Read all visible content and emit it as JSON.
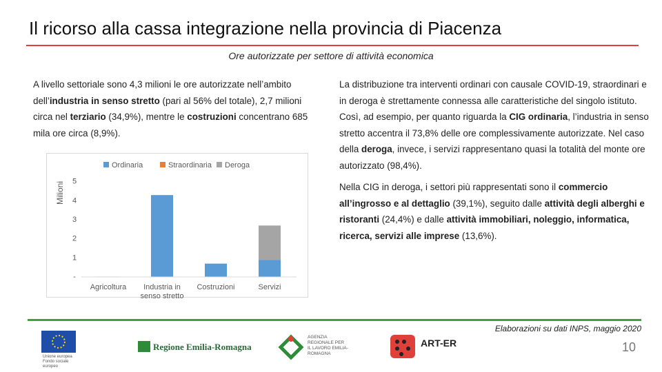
{
  "header": {
    "title": "Il ricorso alla cassa integrazione nella provincia di Piacenza",
    "subtitle": "Ore autorizzate per settore di attività economica"
  },
  "left_text": [
    {
      "text": "A livello settoriale sono 4,3 milioni le ore autorizzate nell’ambito dell’",
      "bold": false
    },
    {
      "text": "industria in senso stretto",
      "bold": true
    },
    {
      "text": " (pari al 56% del totale), 2,7 milioni circa nel ",
      "bold": false
    },
    {
      "text": "terziario",
      "bold": true
    },
    {
      "text": " (34,9%), mentre le ",
      "bold": false
    },
    {
      "text": "costruzioni",
      "bold": true
    },
    {
      "text": " concentrano 685 mila ore circa (8,9%).",
      "bold": false
    }
  ],
  "right_text": [
    [
      {
        "text": "La distribuzione tra interventi ordinari con causale COVID-19, straordinari e in deroga è strettamente connessa alle caratteristiche del singolo istituto. Così, ad esempio, per quanto riguarda la ",
        "bold": false
      },
      {
        "text": "CIG ordinaria",
        "bold": true
      },
      {
        "text": ", l’industria in senso stretto accentra il 73,8% delle ore complessivamente autorizzate. Nel caso della ",
        "bold": false
      },
      {
        "text": "deroga",
        "bold": true
      },
      {
        "text": ", invece, i servizi rappresentano quasi la totalità del monte ore autorizzato (98,4%).",
        "bold": false
      }
    ],
    [
      {
        "text": "Nella CIG in deroga, i settori più rappresentati sono il ",
        "bold": false
      },
      {
        "text": "commercio all’ingrosso e al dettaglio",
        "bold": true
      },
      {
        "text": " (39,1%), seguito dalle ",
        "bold": false
      },
      {
        "text": "attività degli alberghi e ristoranti",
        "bold": true
      },
      {
        "text": " (24,4%) e dalle ",
        "bold": false
      },
      {
        "text": "attività immobiliari, noleggio, informatica, ricerca, servizi alle imprese",
        "bold": true
      },
      {
        "text": " (13,6%).",
        "bold": false
      }
    ]
  ],
  "chart_data": {
    "type": "stacked_bar",
    "y_label": "Milioni",
    "categories": [
      "Agricoltura",
      "Industria in senso stretto",
      "Costruzioni",
      "Servizi"
    ],
    "series": [
      {
        "name": "Ordinaria",
        "color": "#5b9bd5",
        "values": [
          0.02,
          4.3,
          0.7,
          0.9
        ]
      },
      {
        "name": "Straordinaria",
        "color": "#ed7d31",
        "values": [
          0,
          0,
          0,
          0
        ]
      },
      {
        "name": "Deroga",
        "color": "#a5a5a5",
        "values": [
          0,
          0,
          0,
          1.8
        ]
      }
    ],
    "ylim": [
      0,
      5.5
    ],
    "yticks": [
      {
        "value": 0,
        "label": "-"
      },
      1,
      2,
      3,
      4,
      5
    ],
    "grid": false,
    "legend": "top"
  },
  "footer": {
    "source": "Elaborazioni su dati INPS, maggio 2020",
    "page": "10",
    "logos": [
      "Unione europea Fondo sociale europeo",
      "Regione Emilia-Romagna",
      "AGENZIA REGIONALE PER IL LAVORO EMILIA-ROMAGNA",
      "ART-ER"
    ]
  }
}
